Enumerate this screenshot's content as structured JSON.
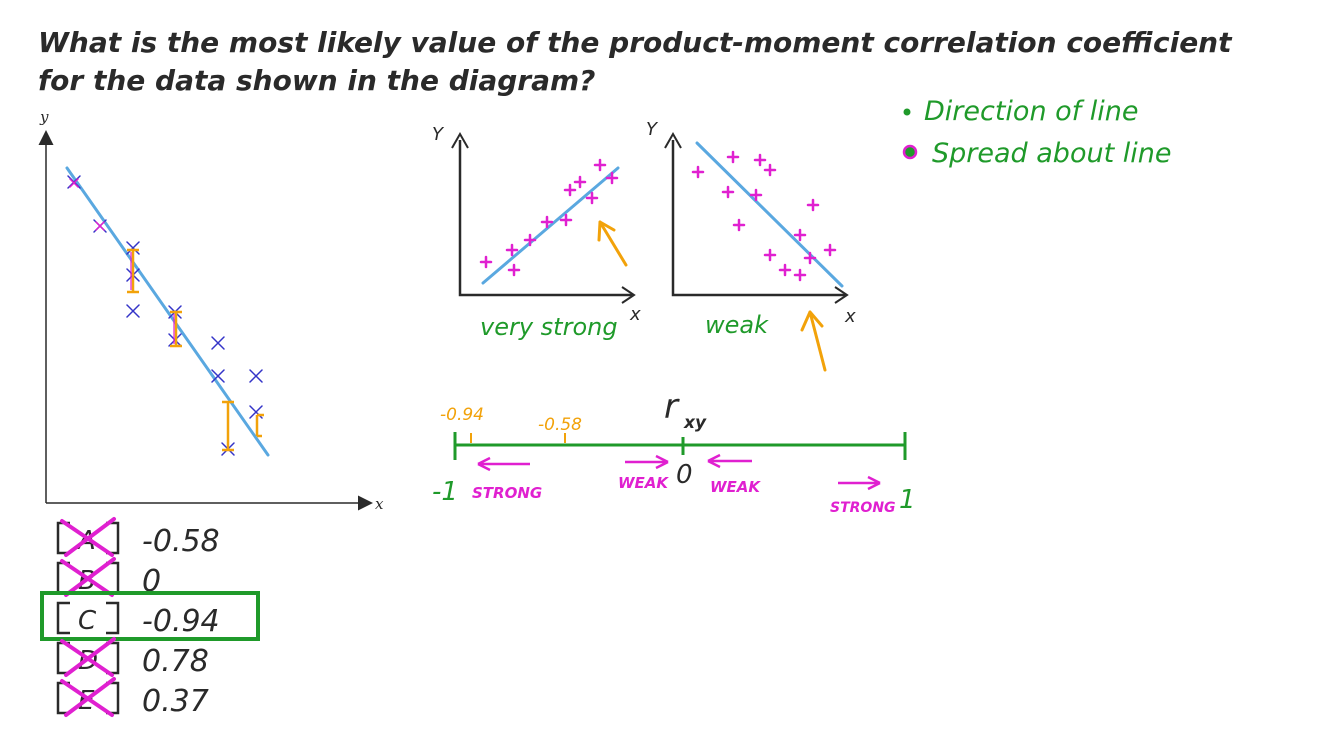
{
  "question": {
    "line1": "What is the most likely value of the product-moment correlation coefficient",
    "line2": "for the data shown in the diagram?"
  },
  "main_plot": {
    "x_axis_label": "x",
    "y_axis_label": "y"
  },
  "mini_plots": {
    "left": {
      "y_label": "Y",
      "x_label": "x",
      "caption": "very strong"
    },
    "right": {
      "y_label": "Y",
      "x_label": "x",
      "caption": "weak"
    }
  },
  "notes": {
    "bullet1": "Direction of line",
    "bullet2": "Spread about line"
  },
  "number_line": {
    "title": "r",
    "title_sub": "xy",
    "tick_neg094": "-0.94",
    "tick_neg058": "-0.58",
    "label_minus1": "-1",
    "label_zero": "0",
    "label_plus1": "1",
    "strong_left": "STRONG",
    "weak_left": "WEAK",
    "weak_right": "WEAK",
    "strong_right": "STRONG"
  },
  "options": [
    {
      "letter": "A",
      "value": "-0.58",
      "crossed": true,
      "selected": false
    },
    {
      "letter": "B",
      "value": "0",
      "crossed": true,
      "selected": false
    },
    {
      "letter": "C",
      "value": "-0.94",
      "crossed": false,
      "selected": true
    },
    {
      "letter": "D",
      "value": "0.78",
      "crossed": true,
      "selected": false
    },
    {
      "letter": "E",
      "value": "0.37",
      "crossed": true,
      "selected": false
    }
  ],
  "colors": {
    "ink": "#2a2a2a",
    "blue_line": "#5aa8e0",
    "blue_cross": "#3434c8",
    "magenta": "#e020d0",
    "green": "#1f9a2a",
    "orange": "#f2a20a"
  }
}
